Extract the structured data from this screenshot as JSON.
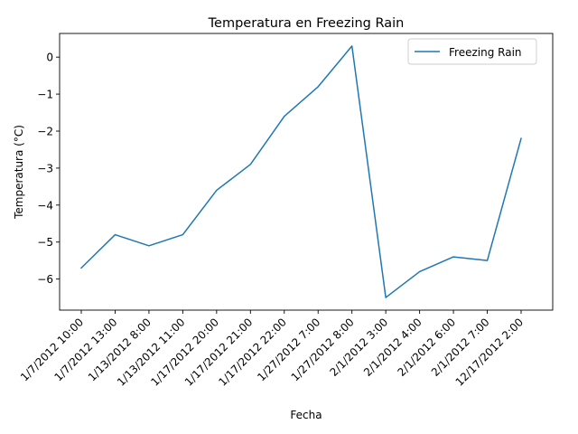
{
  "chart_data": {
    "type": "line",
    "title": "Temperatura en Freezing Rain",
    "xlabel": "Fecha",
    "ylabel": "Temperatura (°C)",
    "categories": [
      "1/7/2012 10:00",
      "1/7/2012 13:00",
      "1/13/2012 8:00",
      "1/13/2012 11:00",
      "1/17/2012 20:00",
      "1/17/2012 21:00",
      "1/17/2012 22:00",
      "1/27/2012 7:00",
      "1/27/2012 8:00",
      "2/1/2012 3:00",
      "2/1/2012 4:00",
      "2/1/2012 6:00",
      "2/1/2012 7:00",
      "12/17/2012 2:00"
    ],
    "series": [
      {
        "name": "Freezing Rain",
        "color": "#1f77b4",
        "values": [
          -5.7,
          -4.8,
          -5.1,
          -4.8,
          -3.6,
          -2.9,
          -1.6,
          -0.8,
          0.3,
          -6.5,
          -5.8,
          -5.4,
          -5.5,
          -2.2
        ]
      }
    ],
    "yticks": [
      "0",
      "−1",
      "−2",
      "−3",
      "−4",
      "−5",
      "−6"
    ],
    "ylim": [
      -6.84,
      0.64
    ],
    "grid": false,
    "legend_position": "upper right"
  }
}
